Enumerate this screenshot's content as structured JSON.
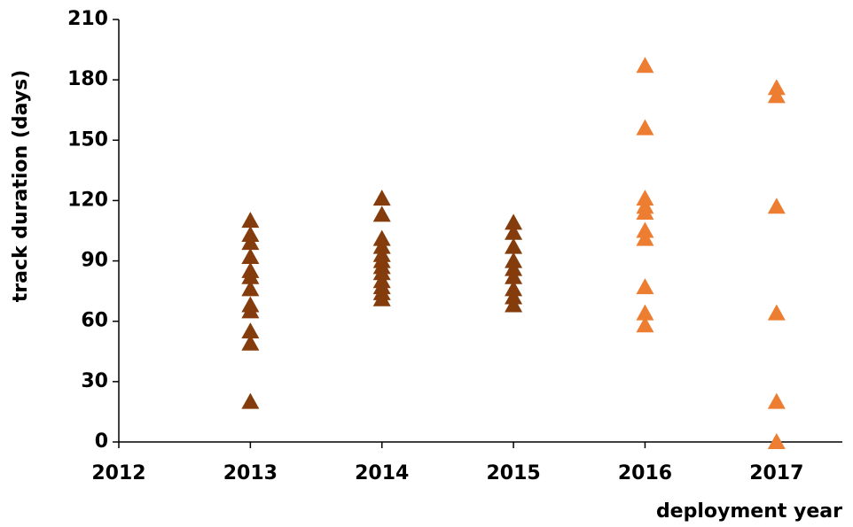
{
  "chart_data": {
    "type": "scatter",
    "x_label": "deployment year",
    "y_label": "track duration (days)",
    "xlim": [
      2012,
      2017.5
    ],
    "xticks": [
      2012,
      2013,
      2014,
      2015,
      2016,
      2017
    ],
    "ylim": [
      0,
      210
    ],
    "yticks": [
      0,
      30,
      60,
      90,
      120,
      150,
      180,
      210
    ],
    "series": [
      {
        "color": "#843c0c",
        "x": [
          2013,
          2013,
          2013,
          2013,
          2013,
          2013,
          2013,
          2013,
          2013,
          2013,
          2013,
          2013,
          2014,
          2014,
          2014,
          2014,
          2014,
          2014,
          2014,
          2014,
          2014,
          2014,
          2014,
          2014,
          2015,
          2015,
          2015,
          2015,
          2015,
          2015,
          2015,
          2015,
          2015
        ],
        "values": [
          110,
          103,
          99,
          92,
          85,
          82,
          76,
          68,
          65,
          55,
          49,
          20,
          121,
          113,
          101,
          97,
          93,
          90,
          87,
          84,
          80,
          77,
          74,
          71,
          109,
          104,
          97,
          90,
          86,
          82,
          76,
          72,
          68
        ]
      },
      {
        "color": "#ed7d31",
        "x": [
          2016,
          2016,
          2016,
          2016,
          2016,
          2016,
          2016,
          2016,
          2016,
          2016,
          2017,
          2017,
          2017,
          2017,
          2017,
          2017
        ],
        "values": [
          187,
          156,
          121,
          117,
          114,
          105,
          101,
          77,
          64,
          58,
          176,
          172,
          117,
          64,
          20,
          0
        ]
      }
    ]
  }
}
